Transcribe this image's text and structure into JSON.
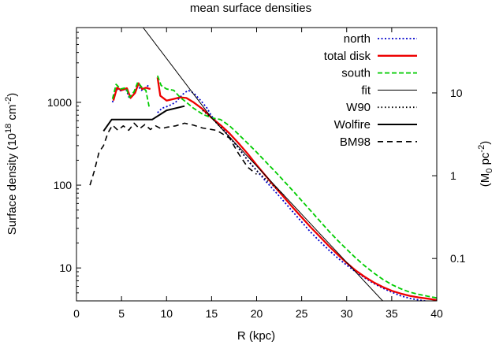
{
  "chart_data": {
    "type": "line",
    "title": "mean surface densities",
    "xlabel": "R (kpc)",
    "ylabel": "Surface density (10^18 cm^-2)",
    "ylabel_parts": {
      "pre": "Surface density (10",
      "sup1": "18",
      "mid": " cm",
      "sup2": "-2",
      "post": ")"
    },
    "y2label": "(M0 pc-2)",
    "y2label_parts": {
      "pre": "(M",
      "sub": "0",
      "mid": " pc",
      "sup": "-2",
      "post": ")"
    },
    "xlim": [
      0,
      40
    ],
    "ylim": [
      4,
      8000
    ],
    "yscale": "log",
    "xticks": [
      "0",
      "5",
      "10",
      "15",
      "20",
      "25",
      "30",
      "35",
      "40"
    ],
    "yticks": [
      "10",
      "100",
      "1000"
    ],
    "y2ticks": [
      "0.1",
      "1",
      "10"
    ],
    "y2_tick_values": [
      13,
      130,
      1300
    ],
    "legend_position": "top-right",
    "grid": false,
    "series": [
      {
        "name": "north",
        "color": "#0000cc",
        "dash": "2,2.5",
        "width": 1.8,
        "segments": [
          [
            [
              4.0,
              1000
            ],
            [
              4.4,
              1450
            ],
            [
              4.9,
              1380
            ],
            [
              5.5,
              1450
            ],
            [
              5.9,
              1100
            ],
            [
              6.4,
              1250
            ],
            [
              6.8,
              1600
            ],
            [
              7.2,
              1400
            ],
            [
              7.7,
              1500
            ],
            [
              8.1,
              1650
            ]
          ],
          [
            [
              9.0,
              750
            ],
            [
              9.5,
              850
            ],
            [
              10.2,
              900
            ],
            [
              11.0,
              1000
            ],
            [
              11.8,
              1250
            ],
            [
              12.4,
              1400
            ],
            [
              13.0,
              1300
            ],
            [
              13.8,
              1050
            ],
            [
              14.5,
              850
            ],
            [
              15.0,
              680
            ],
            [
              16.0,
              520
            ],
            [
              17.0,
              380
            ],
            [
              18.0,
              280
            ],
            [
              19.0,
              200
            ],
            [
              20.0,
              150
            ],
            [
              21.0,
              112
            ],
            [
              22.0,
              85
            ],
            [
              23.0,
              64
            ],
            [
              24.0,
              48
            ],
            [
              25.0,
              36
            ],
            [
              26.0,
              27
            ],
            [
              27.0,
              21
            ],
            [
              28.0,
              16.5
            ],
            [
              29.0,
              13.2
            ],
            [
              30.0,
              10.8
            ],
            [
              31.0,
              9.0
            ],
            [
              32.0,
              7.6
            ],
            [
              33.0,
              6.5
            ],
            [
              34.0,
              5.7
            ],
            [
              35.0,
              5.1
            ],
            [
              36.0,
              4.6
            ],
            [
              37.0,
              4.3
            ],
            [
              38.0,
              4.1
            ],
            [
              39.0,
              3.95
            ],
            [
              40.0,
              3.85
            ]
          ]
        ]
      },
      {
        "name": "total disk",
        "color": "#ee0000",
        "dash": "",
        "width": 2.3,
        "segments": [
          [
            [
              4.1,
              1050
            ],
            [
              4.5,
              1500
            ],
            [
              5.0,
              1400
            ],
            [
              5.6,
              1480
            ],
            [
              6.0,
              1130
            ],
            [
              6.5,
              1300
            ],
            [
              6.9,
              1700
            ],
            [
              7.3,
              1450
            ],
            [
              7.7,
              1500
            ],
            [
              8.2,
              1450
            ]
          ],
          [
            [
              9.0,
              2000
            ],
            [
              9.3,
              1200
            ],
            [
              10.0,
              1050
            ],
            [
              10.8,
              1100
            ],
            [
              11.5,
              1150
            ],
            [
              12.2,
              1130
            ],
            [
              13.0,
              1000
            ],
            [
              14.0,
              830
            ],
            [
              15.0,
              650
            ],
            [
              16.0,
              530
            ],
            [
              17.0,
              420
            ],
            [
              18.0,
              320
            ],
            [
              19.0,
              240
            ],
            [
              20.0,
              175
            ],
            [
              21.0,
              130
            ],
            [
              22.0,
              96
            ],
            [
              23.0,
              72
            ],
            [
              24.0,
              54
            ],
            [
              25.0,
              41
            ],
            [
              26.0,
              31
            ],
            [
              27.0,
              24
            ],
            [
              28.0,
              18.5
            ],
            [
              29.0,
              14.5
            ],
            [
              30.0,
              11.5
            ],
            [
              31.0,
              9.3
            ],
            [
              32.0,
              7.8
            ],
            [
              33.0,
              6.7
            ],
            [
              34.0,
              5.9
            ],
            [
              35.0,
              5.3
            ],
            [
              36.0,
              4.9
            ],
            [
              37.0,
              4.6
            ],
            [
              38.0,
              4.4
            ],
            [
              39.0,
              4.25
            ],
            [
              40.0,
              4.1
            ]
          ]
        ]
      },
      {
        "name": "south",
        "color": "#00cc00",
        "dash": "6,3",
        "width": 1.8,
        "segments": [
          [
            [
              4.0,
              1100
            ],
            [
              4.4,
              1650
            ],
            [
              4.9,
              1450
            ],
            [
              5.5,
              1500
            ],
            [
              5.9,
              1150
            ],
            [
              6.4,
              1350
            ],
            [
              6.8,
              1750
            ],
            [
              7.3,
              1500
            ],
            [
              7.7,
              1400
            ],
            [
              8.1,
              850
            ]
          ],
          [
            [
              9.0,
              2100
            ],
            [
              9.4,
              1600
            ],
            [
              10.0,
              1450
            ],
            [
              10.8,
              1400
            ],
            [
              11.5,
              1150
            ],
            [
              12.2,
              1000
            ],
            [
              13.0,
              850
            ],
            [
              14.0,
              720
            ],
            [
              15.0,
              650
            ],
            [
              16.0,
              620
            ],
            [
              17.0,
              520
            ],
            [
              18.0,
              410
            ],
            [
              19.0,
              320
            ],
            [
              20.0,
              250
            ],
            [
              21.0,
              192
            ],
            [
              22.0,
              148
            ],
            [
              23.0,
              113
            ],
            [
              24.0,
              86
            ],
            [
              25.0,
              65
            ],
            [
              26.0,
              49
            ],
            [
              27.0,
              37
            ],
            [
              28.0,
              28
            ],
            [
              29.0,
              21.5
            ],
            [
              30.0,
              16.8
            ],
            [
              31.0,
              13.2
            ],
            [
              32.0,
              10.6
            ],
            [
              33.0,
              8.7
            ],
            [
              34.0,
              7.3
            ],
            [
              35.0,
              6.3
            ],
            [
              36.0,
              5.6
            ],
            [
              37.0,
              5.1
            ],
            [
              38.0,
              4.8
            ],
            [
              39.0,
              4.55
            ],
            [
              40.0,
              4.35
            ]
          ]
        ]
      },
      {
        "name": "fit",
        "color": "#000000",
        "dash": "",
        "width": 1,
        "segments": [
          [
            [
              7.4,
              8000
            ],
            [
              15.0,
              650
            ],
            [
              34.0,
              4.0
            ]
          ]
        ]
      },
      {
        "name": "W90",
        "color": "#000000",
        "dash": "1.5,3",
        "width": 1.8,
        "segments": [
          [
            [
              14.0,
              800
            ],
            [
              15.0,
              650
            ],
            [
              16.0,
              500
            ],
            [
              17.0,
              380
            ],
            [
              18.0,
              280
            ],
            [
              19.0,
              200
            ],
            [
              20.0,
              150
            ],
            [
              21.0,
              118
            ],
            [
              22.0,
              95
            ],
            [
              23.0,
              76
            ]
          ]
        ]
      },
      {
        "name": "Wolfire",
        "color": "#000000",
        "dash": "",
        "width": 2,
        "segments": [
          [
            [
              3.0,
              450
            ],
            [
              3.9,
              620
            ],
            [
              8.4,
              620
            ],
            [
              10.0,
              800
            ],
            [
              12.0,
              900
            ]
          ]
        ]
      },
      {
        "name": "BM98",
        "color": "#000000",
        "dash": "7,5",
        "width": 1.6,
        "segments": [
          [
            [
              1.5,
              100
            ],
            [
              2.0,
              150
            ],
            [
              2.5,
              250
            ],
            [
              3.0,
              300
            ],
            [
              3.5,
              430
            ],
            [
              4.0,
              530
            ],
            [
              4.6,
              460
            ],
            [
              5.2,
              520
            ],
            [
              5.8,
              460
            ],
            [
              6.4,
              560
            ],
            [
              7.0,
              480
            ],
            [
              7.6,
              540
            ],
            [
              8.2,
              470
            ],
            [
              8.8,
              520
            ],
            [
              9.4,
              480
            ],
            [
              10.0,
              500
            ],
            [
              11.0,
              520
            ],
            [
              12.0,
              560
            ],
            [
              13.0,
              530
            ],
            [
              14.0,
              490
            ],
            [
              15.0,
              470
            ],
            [
              15.5,
              460
            ],
            [
              16.0,
              430
            ],
            [
              17.0,
              370
            ],
            [
              18.0,
              240
            ],
            [
              19.0,
              165
            ],
            [
              20.0,
              135
            ]
          ]
        ]
      }
    ]
  }
}
